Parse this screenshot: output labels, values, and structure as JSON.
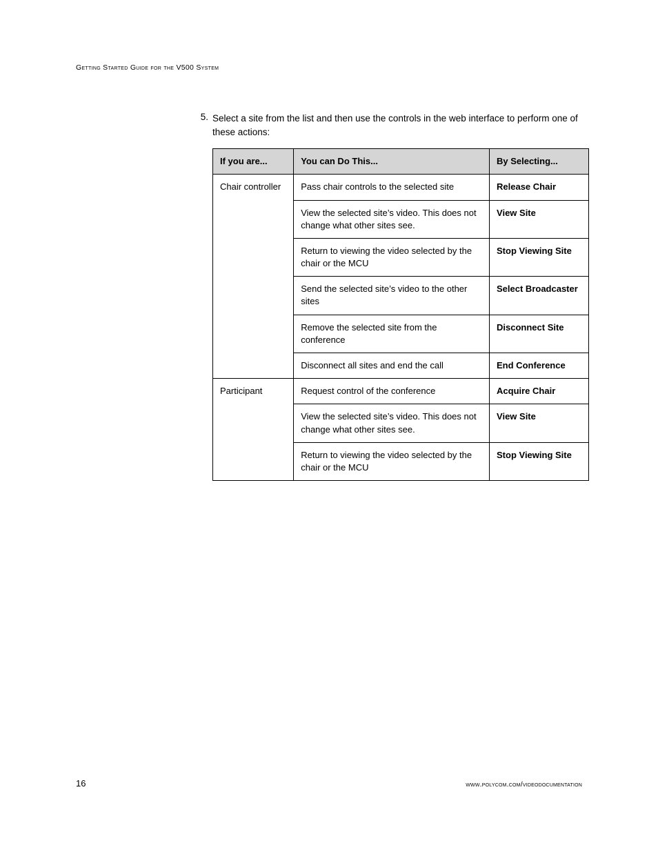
{
  "header": {
    "running_title": "Getting Started Guide for the V500 System"
  },
  "step": {
    "number": "5.",
    "text": "Select a site from the list and then use the controls in the web interface to perform one of these actions:"
  },
  "table": {
    "columns": {
      "role": "If you are...",
      "action": "You can Do This...",
      "select": "By Selecting..."
    },
    "widths": {
      "role": 114,
      "action": 276,
      "select": 140
    },
    "header_bg": "#d5d5d5",
    "border_color": "#000000",
    "font_size": 13,
    "groups": [
      {
        "role": "Chair controller",
        "rows": [
          {
            "action": "Pass chair controls to the selected site",
            "select": "Release Chair"
          },
          {
            "action": "View the selected site’s video. This does not change what other sites see.",
            "select": "View Site"
          },
          {
            "action": "Return to viewing the video selected by the chair or the MCU",
            "select": "Stop Viewing Site"
          },
          {
            "action": "Send the selected site’s video to the other sites",
            "select": "Select Broadcaster"
          },
          {
            "action": "Remove the selected site from the conference",
            "select": "Disconnect Site"
          },
          {
            "action": "Disconnect all sites and end the call",
            "select": "End Conference"
          }
        ]
      },
      {
        "role": "Participant",
        "rows": [
          {
            "action": "Request control of the conference",
            "select": "Acquire Chair"
          },
          {
            "action": "View the selected site’s video. This does not change what other sites see.",
            "select": "View Site"
          },
          {
            "action": "Return to viewing the video selected by the chair or the MCU",
            "select": "Stop Viewing Site"
          }
        ]
      }
    ]
  },
  "footer": {
    "page_number": "16",
    "url": "www.polycom.com/videodocumentation"
  }
}
